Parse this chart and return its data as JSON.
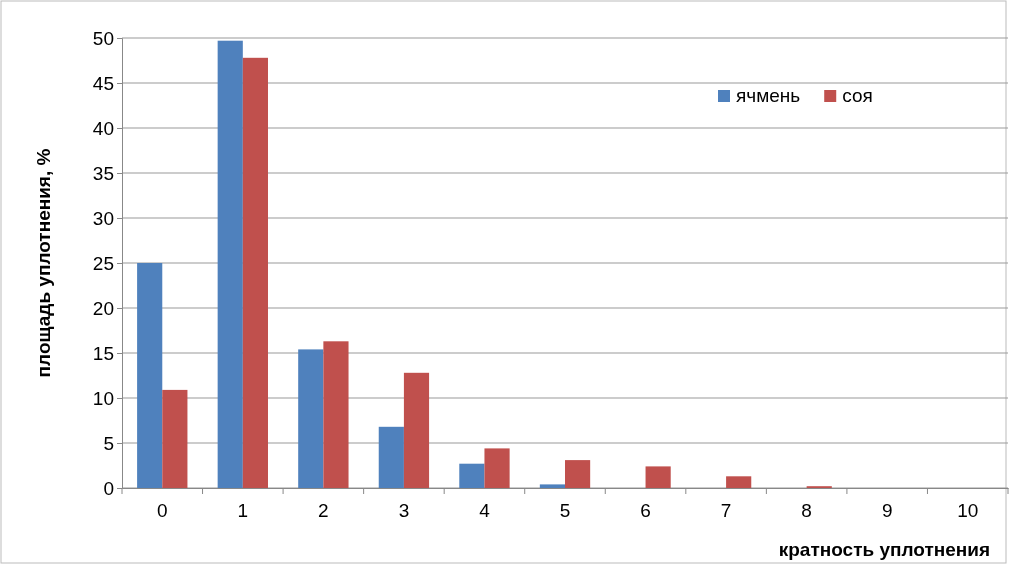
{
  "chart_data": {
    "type": "bar",
    "xlabel": "кратность уплотнения",
    "ylabel": "площадь уплотнения, %",
    "categories": [
      "0",
      "1",
      "2",
      "3",
      "4",
      "5",
      "6",
      "7",
      "8",
      "9",
      "10"
    ],
    "series": [
      {
        "name": "ячмень",
        "color": "#4f81bd",
        "values": [
          25,
          49.7,
          15.4,
          6.8,
          2.7,
          0.4,
          0,
          0,
          0,
          0,
          0
        ]
      },
      {
        "name": "соя",
        "color": "#c0504d",
        "values": [
          10.9,
          47.8,
          16.3,
          12.8,
          4.4,
          3.1,
          2.4,
          1.3,
          0.2,
          0,
          0
        ]
      }
    ],
    "ylim": [
      0,
      50
    ],
    "yticks": [
      0,
      5,
      10,
      15,
      20,
      25,
      30,
      35,
      40,
      45,
      50
    ],
    "grid": "y",
    "legend": "top right"
  }
}
